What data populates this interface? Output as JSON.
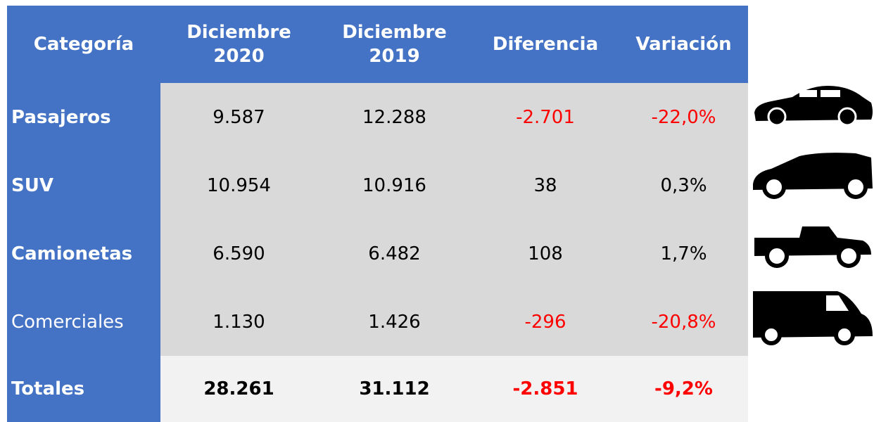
{
  "table": {
    "header": [
      "Categoría",
      "Diciembre 2020",
      "Diciembre 2019",
      "Diferencia",
      "Variación"
    ],
    "rows": [
      [
        "Pasajeros",
        "9.587",
        "12.288",
        "-2.701",
        "-22,0%"
      ],
      [
        "SUV",
        "10.954",
        "10.916",
        "38",
        "0,3%"
      ],
      [
        "Camionetas",
        "6.590",
        "6.482",
        "108",
        "1,7%"
      ],
      [
        "Comerciales",
        "1.130",
        "1.426",
        "-296",
        "-20,8%"
      ]
    ],
    "totals": [
      "Totales",
      "28.261",
      "31.112",
      "-2.851",
      "-9,2%"
    ]
  }
}
